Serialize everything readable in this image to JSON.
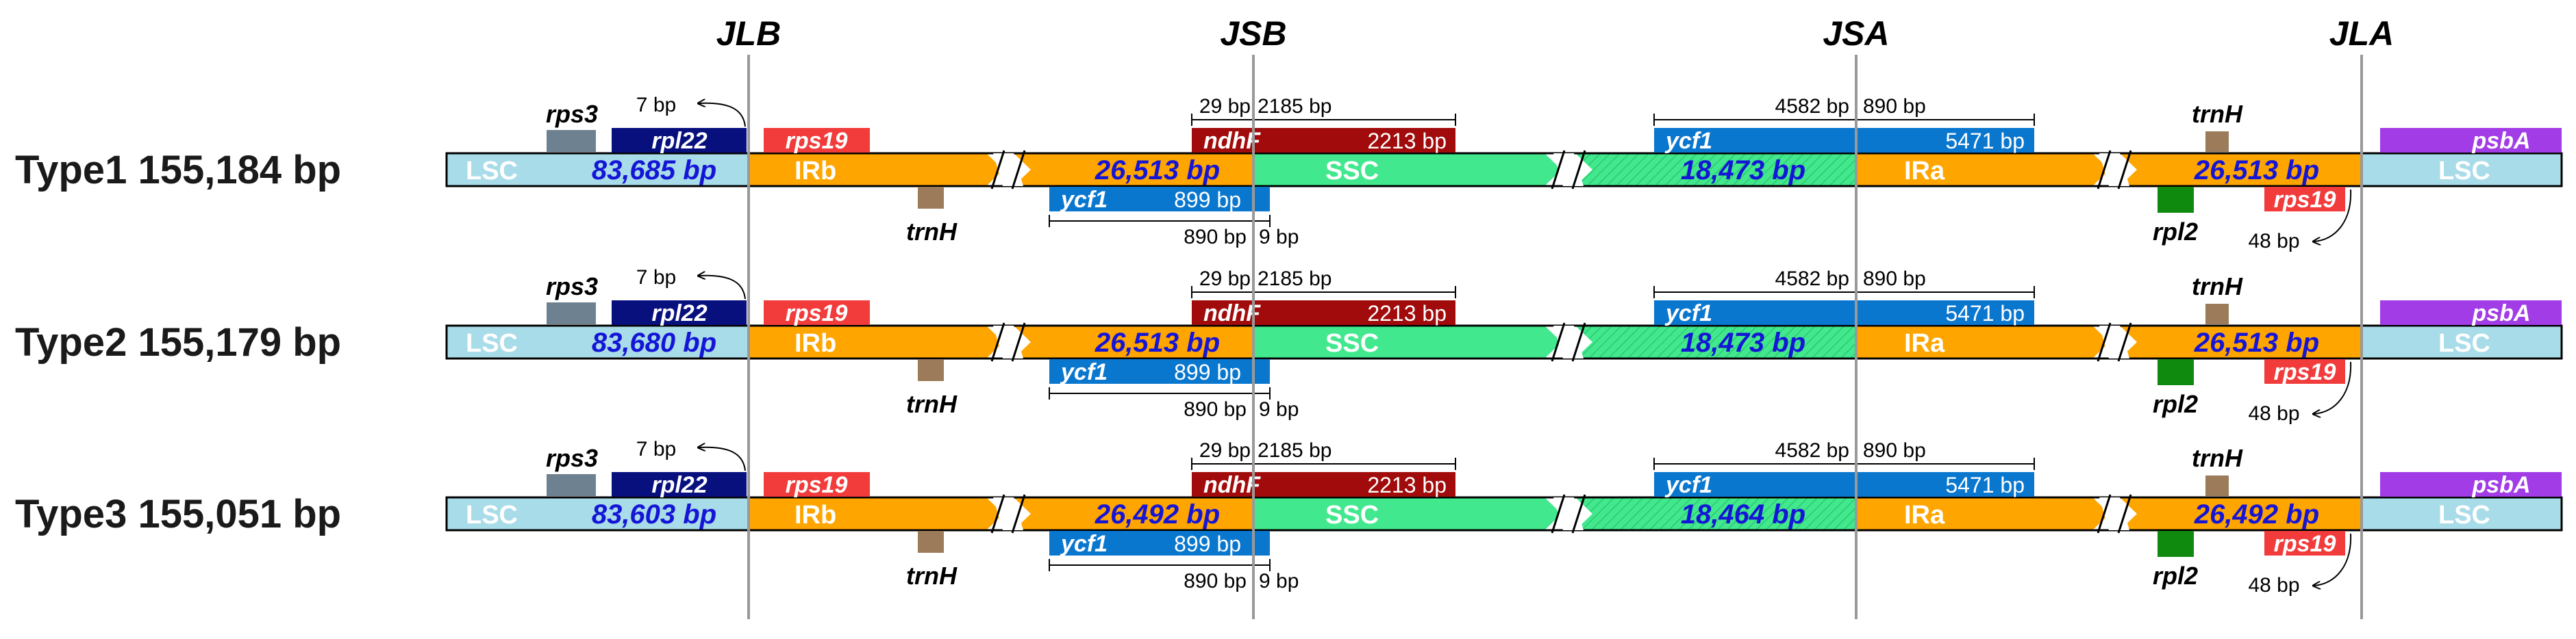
{
  "junctions": [
    "JLB",
    "JSB",
    "JSA",
    "JLA"
  ],
  "region_labels": {
    "lsc": "LSC",
    "irb": "IRb",
    "ssc": "SSC",
    "ira": "IRa"
  },
  "colors": {
    "lsc": "#a8dce9",
    "ir": "#ffa500",
    "ssc": "#41e88d",
    "rps3": "#6e8191",
    "rpl22": "#08107e",
    "rps19": "#f23b3b",
    "trnH": "#9b7b5a",
    "ndhF": "#a10b0b",
    "ycf1": "#0a77cf",
    "rpl2": "#0f8a0f",
    "psbA": "#a23ce6",
    "length_text": "#1515d6",
    "junction_line": "#999999"
  },
  "genes": {
    "rps3": "rps3",
    "rpl22": "rpl22",
    "rps19": "rps19",
    "trnH": "trnH",
    "ndhF": "ndhF",
    "ycf1": "ycf1",
    "rpl2": "rpl2",
    "psbA": "psbA"
  },
  "rows": [
    {
      "name": "Type1 155,184 bp",
      "lsc_length": "83,685 bp",
      "irb_length": "26,513 bp",
      "ssc_length": "18,473 bp",
      "ira_length": "26,513 bp",
      "rpl22_gap": "7 bp",
      "ndhF_left": "29 bp",
      "ndhF_right": "2185 bp",
      "ndhF_len": "2213 bp",
      "ycf1_frag_len": "899 bp",
      "ycf1_frag_left": "890 bp",
      "ycf1_frag_right": "9 bp",
      "ycf1_left": "4582 bp",
      "ycf1_right": "890 bp",
      "ycf1_len": "5471 bp",
      "rps19_gap": "48 bp"
    },
    {
      "name": "Type2 155,179 bp",
      "lsc_length": "83,680 bp",
      "irb_length": "26,513 bp",
      "ssc_length": "18,473 bp",
      "ira_length": "26,513 bp",
      "rpl22_gap": "7 bp",
      "ndhF_left": "29 bp",
      "ndhF_right": "2185 bp",
      "ndhF_len": "2213 bp",
      "ycf1_frag_len": "899 bp",
      "ycf1_frag_left": "890 bp",
      "ycf1_frag_right": "9 bp",
      "ycf1_left": "4582 bp",
      "ycf1_right": "890 bp",
      "ycf1_len": "5471 bp",
      "rps19_gap": "48 bp"
    },
    {
      "name": "Type3 155,051 bp",
      "lsc_length": "83,603 bp",
      "irb_length": "26,492 bp",
      "ssc_length": "18,464 bp",
      "ira_length": "26,492 bp",
      "rpl22_gap": "7 bp",
      "ndhF_left": "29 bp",
      "ndhF_right": "2185 bp",
      "ndhF_len": "2213 bp",
      "ycf1_frag_len": "899 bp",
      "ycf1_frag_left": "890 bp",
      "ycf1_frag_right": "9 bp",
      "ycf1_left": "4582 bp",
      "ycf1_right": "890 bp",
      "ycf1_len": "5471 bp",
      "rps19_gap": "48 bp"
    }
  ]
}
